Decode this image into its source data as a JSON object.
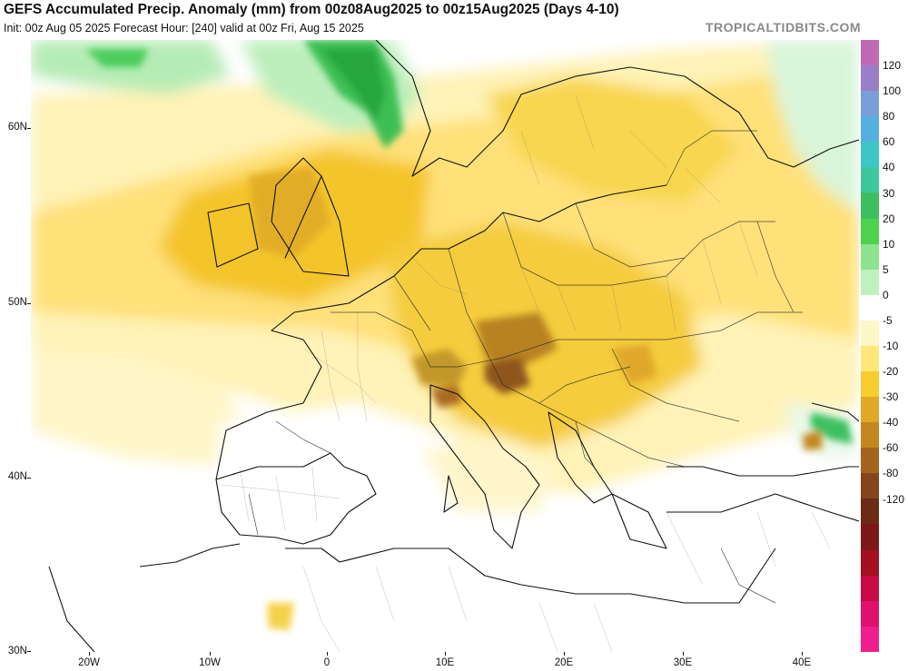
{
  "header": {
    "title": "GEFS Accumulated Precip. Anomaly (mm) from 00z08Aug2025 to 00z15Aug2025 (Days 4-10)",
    "subtitle": "Init: 00z Aug 05 2025   Forecast Hour: [240]   valid at 00z Fri, Aug 15 2025",
    "brand": "TROPICALTIDBITS.COM"
  },
  "axes": {
    "lat_labels": [
      "60N",
      "50N",
      "40N",
      "30N"
    ],
    "lon_labels": [
      "20W",
      "10W",
      "0",
      "10E",
      "20E",
      "30E",
      "40E"
    ]
  },
  "colorbar": {
    "labels": [
      "120",
      "100",
      "80",
      "60",
      "40",
      "30",
      "20",
      "10",
      "5",
      "0",
      "-5",
      "-10",
      "-20",
      "-30",
      "-40",
      "-60",
      "-80",
      "-120"
    ],
    "colors": [
      "#c06ab5",
      "#9b7fc6",
      "#7a9ed9",
      "#55b0e0",
      "#3cc6c6",
      "#3dc79b",
      "#3fbe5f",
      "#4ed24c",
      "#8ee38e",
      "#bff0bf",
      "#ffffff",
      "#fff7c6",
      "#ffe77a",
      "#f6cd2e",
      "#e2a826",
      "#c4861f",
      "#a2641c",
      "#84451a",
      "#6b2b14",
      "#7e1818",
      "#a3101f",
      "#c80a46",
      "#e0106e",
      "#f01e8c"
    ]
  }
}
